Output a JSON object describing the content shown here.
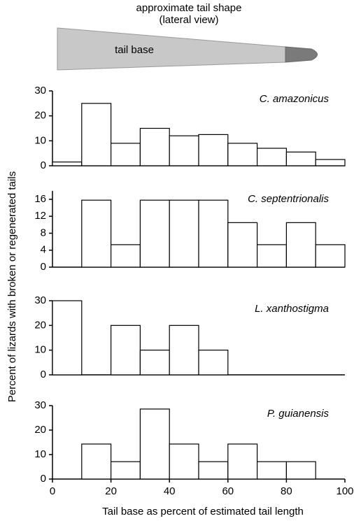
{
  "diagram": {
    "title": [
      "approximate tail shape",
      "(lateral view)"
    ],
    "label": "tail base"
  },
  "xlabel": "Tail base as percent of estimated tail length",
  "ylabel": "Percent of lizards with broken or regenerated tails",
  "chart_data": [
    {
      "type": "histogram",
      "title": "C. amazonicus",
      "bins": [
        0,
        10,
        20,
        30,
        40,
        50,
        60,
        70,
        80,
        90,
        100
      ],
      "values": [
        1.5,
        25,
        9,
        15,
        12,
        12.5,
        9,
        7,
        5.5,
        2.5
      ],
      "color": "#ffffff",
      "xlim": [
        0,
        100
      ],
      "ylim": [
        0,
        30
      ],
      "yticks": [
        0,
        10,
        20,
        30
      ]
    },
    {
      "type": "histogram",
      "title": "C. septentrionalis",
      "bins": [
        0,
        10,
        20,
        30,
        40,
        50,
        60,
        70,
        80,
        90,
        100
      ],
      "values": [
        0,
        15.8,
        5.3,
        15.8,
        15.8,
        15.8,
        10.5,
        5.3,
        10.5,
        5.3
      ],
      "color": "#ffffff",
      "xlim": [
        0,
        100
      ],
      "ylim": [
        0,
        18
      ],
      "yticks": [
        0,
        4,
        8,
        12,
        16
      ]
    },
    {
      "type": "histogram",
      "title": "L. xanthostigma",
      "bins": [
        0,
        10,
        20,
        30,
        40,
        50,
        60,
        70,
        80,
        90,
        100
      ],
      "values": [
        30,
        0,
        20,
        10,
        20,
        10,
        0,
        0,
        0,
        0
      ],
      "color": "#ffffff",
      "xlim": [
        0,
        100
      ],
      "ylim": [
        0,
        30
      ],
      "yticks": [
        0,
        10,
        20,
        30
      ]
    },
    {
      "type": "histogram",
      "title": "P. guianensis",
      "bins": [
        0,
        10,
        20,
        30,
        40,
        50,
        60,
        70,
        80,
        90,
        100
      ],
      "values": [
        0,
        14.3,
        7.1,
        28.6,
        14.3,
        7.1,
        14.3,
        7.1,
        7.1,
        0
      ],
      "color": "#ffffff",
      "xlim": [
        0,
        100
      ],
      "ylim": [
        0,
        30
      ],
      "yticks": [
        0,
        10,
        20,
        30
      ],
      "xticks": [
        0,
        20,
        40,
        60,
        80,
        100
      ]
    }
  ]
}
